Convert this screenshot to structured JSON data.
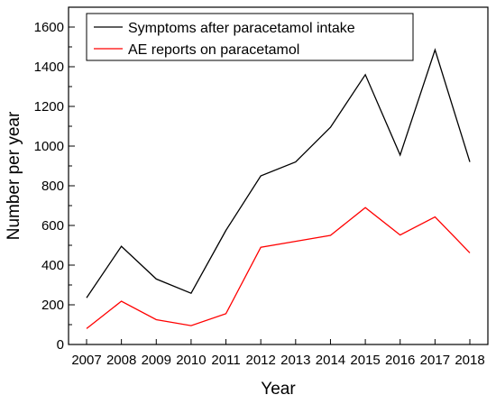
{
  "chart_data": {
    "type": "line",
    "x": [
      2007,
      2008,
      2009,
      2010,
      2011,
      2012,
      2013,
      2014,
      2015,
      2016,
      2017,
      2018
    ],
    "xlabel": "Year",
    "ylabel": "Number per year",
    "ylim": [
      0,
      1700
    ],
    "yticks": [
      0,
      200,
      400,
      600,
      800,
      1000,
      1200,
      1400,
      1600
    ],
    "grid": false,
    "legend_position": "top-left",
    "series": [
      {
        "name": "Symptoms after paracetamol intake",
        "color": "#000000",
        "values": [
          235,
          495,
          330,
          258,
          575,
          850,
          920,
          1095,
          1360,
          955,
          1485,
          920
        ]
      },
      {
        "name": "AE reports on paracetamol",
        "color": "#ff0000",
        "values": [
          80,
          218,
          125,
          95,
          155,
          490,
          520,
          550,
          690,
          552,
          643,
          462
        ]
      }
    ]
  }
}
